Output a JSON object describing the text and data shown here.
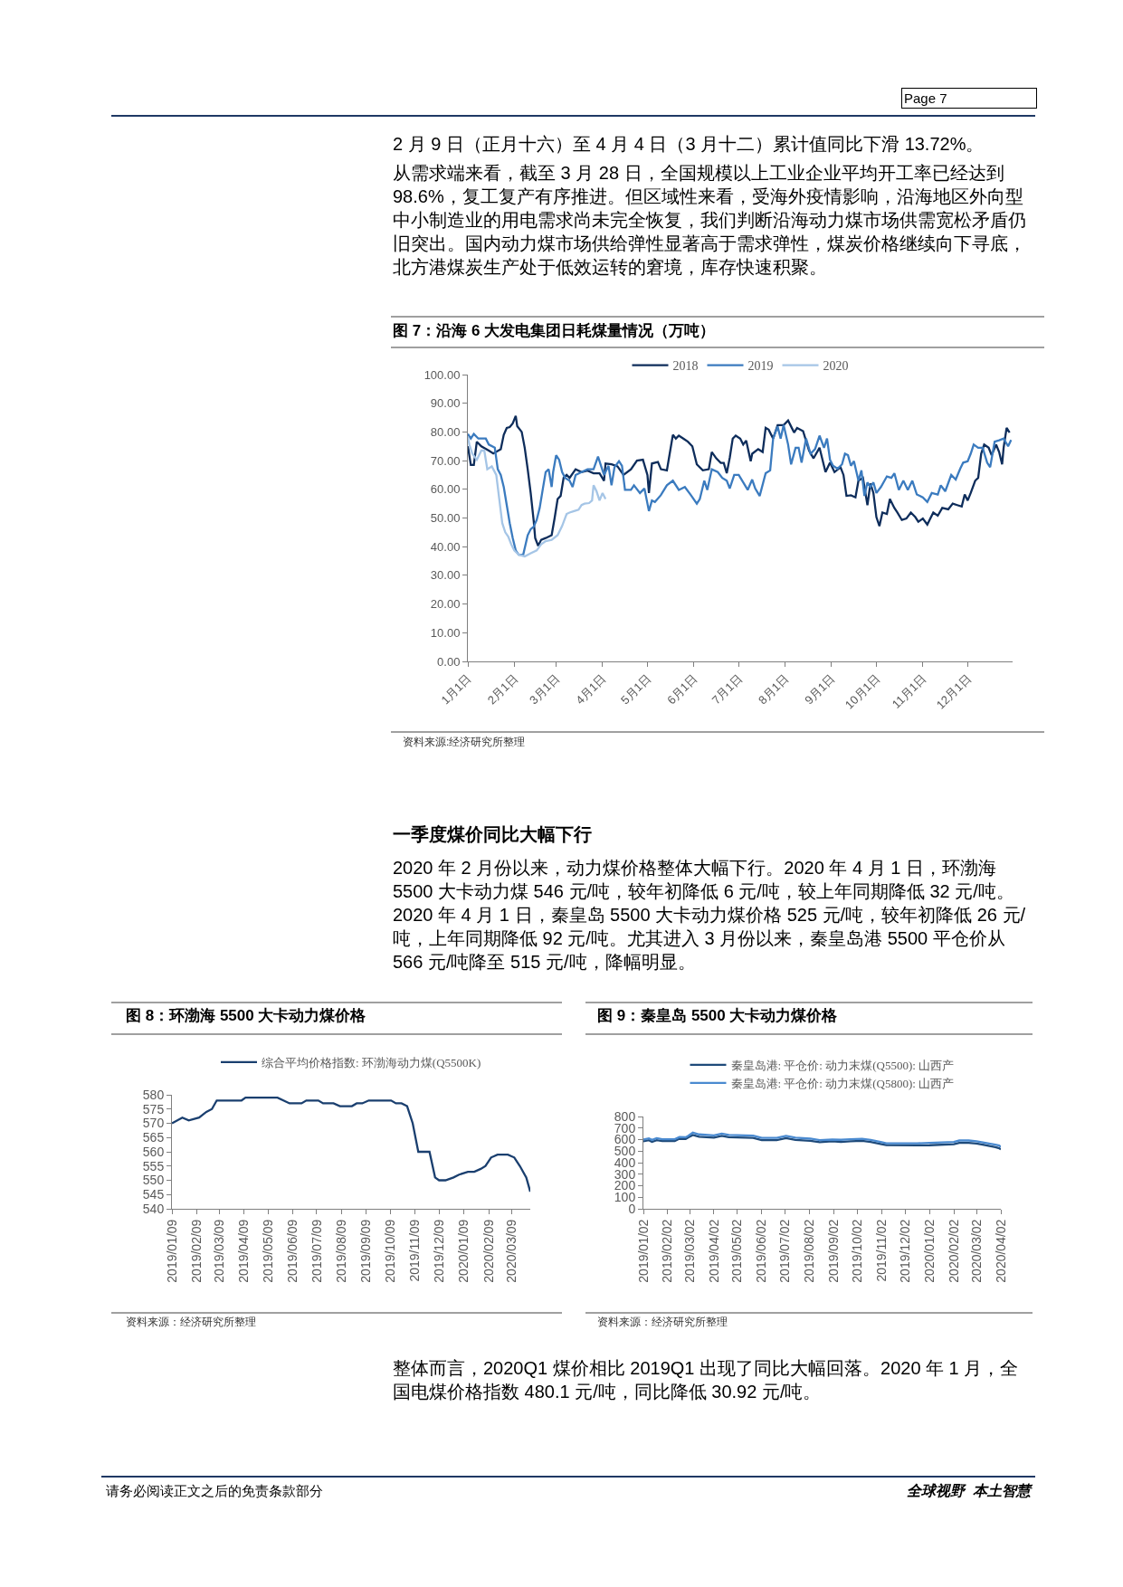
{
  "chart_data": [
    {
      "type": "line",
      "title": "图 7：沿海 6 大发电集团日耗煤量情况（万吨）",
      "legend": "top",
      "grid": false,
      "xlim": [
        "--01-01",
        "--12-31"
      ],
      "xticks": [
        {
          "value": "--01-01",
          "label": "1月1日"
        },
        {
          "value": "--02-01",
          "label": "2月1日"
        },
        {
          "value": "--03-01",
          "label": "3月1日"
        },
        {
          "value": "--04-01",
          "label": "4月1日"
        },
        {
          "value": "--05-01",
          "label": "5月1日"
        },
        {
          "value": "--06-01",
          "label": "6月1日"
        },
        {
          "value": "--07-01",
          "label": "7月1日"
        },
        {
          "value": "--08-01",
          "label": "8月1日"
        },
        {
          "value": "--09-01",
          "label": "9月1日"
        },
        {
          "value": "--10-01",
          "label": "10月1日"
        },
        {
          "value": "--11-01",
          "label": "11月1日"
        },
        {
          "value": "--12-01",
          "label": "12月1日"
        }
      ],
      "ylim": [
        0,
        100
      ],
      "yticks": [
        {
          "value": 0,
          "label": "0.00"
        },
        {
          "value": 10,
          "label": "10.00"
        },
        {
          "value": 20,
          "label": "20.00"
        },
        {
          "value": 30,
          "label": "30.00"
        },
        {
          "value": 40,
          "label": "40.00"
        },
        {
          "value": 50,
          "label": "50.00"
        },
        {
          "value": 60,
          "label": "60.00"
        },
        {
          "value": 70,
          "label": "70.00"
        },
        {
          "value": 80,
          "label": "80.00"
        },
        {
          "value": 90,
          "label": "90.00"
        },
        {
          "value": 100,
          "label": "100.00"
        }
      ],
      "series": [
        {
          "name": "2018",
          "color": "#0e2d5b",
          "x": [
            "--01-01",
            "--01-03",
            "--01-05",
            "--01-07",
            "--01-10",
            "--01-15",
            "--01-18",
            "--01-23",
            "--01-25",
            "--01-27",
            "--01-29",
            "--01-31",
            "--02-02",
            "--02-03",
            "--02-06",
            "--02-08",
            "--02-10",
            "--02-12",
            "--02-14",
            "--02-15",
            "--02-17",
            "--02-19",
            "--02-22",
            "--02-26",
            "--02-28",
            "--03-02",
            "--03-04",
            "--03-06",
            "--03-08",
            "--03-10",
            "--03-14",
            "--03-18",
            "--03-22",
            "--03-26",
            "--03-30",
            "--04-02",
            "--04-03",
            "--04-07",
            "--04-11",
            "--04-15",
            "--04-20",
            "--04-24",
            "--04-28",
            "--05-01",
            "--05-02",
            "--05-04",
            "--05-08",
            "--05-10",
            "--05-14",
            "--05-18",
            "--05-20",
            "--05-22",
            "--05-25",
            "--05-28",
            "--05-31",
            "--06-03",
            "--06-07",
            "--06-11",
            "--06-13",
            "--06-16",
            "--06-19",
            "--06-21",
            "--06-23",
            "--06-25",
            "--06-27",
            "--06-29",
            "--07-02",
            "--07-04",
            "--07-06",
            "--07-09",
            "--07-10",
            "--07-14",
            "--07-17",
            "--07-19",
            "--07-21",
            "--07-24",
            "--07-27",
            "--07-31",
            "--08-03",
            "--08-05",
            "--08-07",
            "--08-09",
            "--08-13",
            "--08-17",
            "--08-20",
            "--08-24",
            "--08-28",
            "--08-31",
            "--09-03",
            "--09-07",
            "--09-09",
            "--09-11",
            "--09-14",
            "--09-17",
            "--09-19",
            "--09-22",
            "--09-25",
            "--09-27",
            "--09-29",
            "--10-01",
            "--10-03",
            "--10-05",
            "--10-08",
            "--10-10",
            "--10-13",
            "--10-15",
            "--10-18",
            "--10-21",
            "--10-24",
            "--10-27",
            "--10-29",
            "--11-01",
            "--11-04",
            "--11-08",
            "--11-11",
            "--11-14",
            "--11-18",
            "--11-21",
            "--11-24",
            "--11-27",
            "--11-29",
            "--12-01",
            "--12-03",
            "--12-06",
            "--12-08",
            "--12-10",
            "--12-12",
            "--12-15",
            "--12-17",
            "--12-20",
            "--12-22",
            "--12-24",
            "--12-25",
            "--12-27",
            "--12-29"
          ],
          "values": [
            75,
            68.5,
            68.5,
            76.6,
            75,
            73.5,
            72.5,
            74,
            79,
            81.4,
            81.7,
            83,
            85.6,
            82,
            80,
            74.5,
            67,
            58.7,
            49,
            43,
            40.3,
            42.4,
            43,
            44,
            50,
            56.6,
            57.7,
            64,
            65,
            64,
            67,
            66,
            66.5,
            65.6,
            65.6,
            63,
            69,
            68.7,
            68,
            65,
            67,
            70,
            70.3,
            65,
            58.7,
            69,
            69.5,
            67,
            66.6,
            79,
            77.7,
            78.7,
            77.7,
            76.6,
            75,
            68.7,
            66.6,
            67,
            73,
            70.8,
            69.2,
            69.2,
            65.6,
            71,
            77.7,
            78.7,
            77.7,
            75.6,
            77,
            69.8,
            72.4,
            74,
            73,
            81.4,
            80.8,
            77.7,
            82.4,
            82.4,
            84,
            81.9,
            79.8,
            81.4,
            80.3,
            73.5,
            70.8,
            74.5,
            66,
            69.3,
            66,
            67.7,
            65,
            57.7,
            57.9,
            57.2,
            63,
            64,
            54.5,
            62,
            58.7,
            50.3,
            47.2,
            51.9,
            51.4,
            56.6,
            53.5,
            51.9,
            49.3,
            49.8,
            51.9,
            50.3,
            48.7,
            49.8,
            47.7,
            51.9,
            50.8,
            53.5,
            53,
            55,
            54.5,
            54,
            58.2,
            56.1,
            58.7,
            63,
            64,
            72.4,
            75.6,
            74.5,
            71.9,
            75.6,
            73,
            68.7,
            74.5,
            81.4,
            79.8
          ]
        },
        {
          "name": "2019",
          "color": "#3b7bbf",
          "x": [
            "--01-01",
            "--01-03",
            "--01-05",
            "--01-08",
            "--01-13",
            "--01-15",
            "--01-19",
            "--01-21",
            "--01-23",
            "--01-25",
            "--01-27",
            "--01-29",
            "--01-31",
            "--02-02",
            "--02-04",
            "--02-07",
            "--02-10",
            "--02-12",
            "--02-14",
            "--02-16",
            "--02-18",
            "--02-20",
            "--02-22",
            "--02-24",
            "--02-26",
            "--02-27",
            "--03-01",
            "--03-03",
            "--03-05",
            "--03-07",
            "--03-10",
            "--03-12",
            "--03-14",
            "--03-18",
            "--03-22",
            "--03-26",
            "--03-29",
            "--03-31",
            "--04-02",
            "--04-05",
            "--04-07",
            "--04-09",
            "--04-12",
            "--04-14",
            "--04-16",
            "--04-20",
            "--04-22",
            "--04-26",
            "--04-29",
            "--05-02",
            "--05-04",
            "--05-06",
            "--05-10",
            "--05-14",
            "--05-18",
            "--05-22",
            "--05-26",
            "--05-30",
            "--06-03",
            "--06-05",
            "--06-08",
            "--06-10",
            "--06-13",
            "--06-17",
            "--06-20",
            "--06-23",
            "--06-25",
            "--06-28",
            "--07-01",
            "--07-04",
            "--07-07",
            "--07-10",
            "--07-12",
            "--07-15",
            "--07-19",
            "--07-22",
            "--07-24",
            "--07-27",
            "--07-29",
            "--07-31",
            "--08-03",
            "--08-05",
            "--08-08",
            "--08-10",
            "--08-12",
            "--08-15",
            "--08-18",
            "--08-21",
            "--08-24",
            "--08-27",
            "--08-29",
            "--08-31",
            "--09-02",
            "--09-05",
            "--09-08",
            "--09-10",
            "--09-12",
            "--09-14",
            "--09-16",
            "--09-19",
            "--09-21",
            "--09-23",
            "--09-25",
            "--09-27",
            "--09-29",
            "--10-01",
            "--10-04",
            "--10-08",
            "--10-11",
            "--10-13",
            "--10-16",
            "--10-19",
            "--10-22",
            "--10-25",
            "--10-28",
            "--11-01",
            "--11-04",
            "--11-07",
            "--11-11",
            "--11-13",
            "--11-16",
            "--11-20",
            "--11-23",
            "--11-26",
            "--11-28",
            "--12-01",
            "--12-03",
            "--12-05",
            "--12-08",
            "--12-11",
            "--12-14",
            "--12-16",
            "--12-19",
            "--12-22",
            "--12-25",
            "--12-28",
            "--12-30"
          ],
          "values": [
            79.3,
            77.7,
            79.3,
            77.7,
            77.7,
            75.6,
            74.5,
            67,
            65,
            60.8,
            54.5,
            48.2,
            43,
            38.7,
            37.2,
            37.2,
            44,
            46.1,
            47,
            49.3,
            53.5,
            59.8,
            66,
            67,
            60.8,
            66,
            71.9,
            70.3,
            66,
            64,
            63,
            60.8,
            65,
            66,
            67,
            67,
            71.4,
            68.2,
            65,
            68.2,
            61.4,
            67.7,
            69.8,
            68.2,
            59.8,
            59.8,
            61.4,
            58.7,
            60.3,
            52.4,
            56.1,
            55.6,
            58,
            61.4,
            63,
            59.8,
            60.8,
            58,
            55,
            56.6,
            63,
            59.8,
            67,
            66,
            64,
            63,
            60.3,
            65,
            65,
            62.4,
            59.8,
            63.4,
            60.3,
            57.7,
            65.6,
            66.6,
            77.7,
            81.9,
            77.7,
            82.4,
            75.6,
            68.7,
            74.5,
            74.5,
            69.3,
            77.7,
            72.4,
            74,
            78.7,
            74.5,
            77.7,
            70.3,
            68.2,
            67.2,
            68.7,
            72.4,
            71.9,
            68.2,
            69.8,
            63,
            66.6,
            57.7,
            62.4,
            60.8,
            62.4,
            58.7,
            60.8,
            64.5,
            64,
            65.6,
            59.8,
            63,
            59.8,
            63,
            58.2,
            57.2,
            55.6,
            58.7,
            58.2,
            61.4,
            59.3,
            65,
            63.4,
            67.2,
            69.3,
            69.8,
            72.4,
            75.6,
            74.5,
            74.5,
            69.3,
            67.7,
            76.6,
            77.1,
            77.7,
            75,
            77.2
          ]
        },
        {
          "name": "2020",
          "color": "#a5c5e6",
          "x": [
            "--01-01",
            "--01-02",
            "--01-04",
            "--01-07",
            "--01-10",
            "--01-12",
            "--01-14",
            "--01-17",
            "--01-20",
            "--01-22",
            "--01-24",
            "--01-26",
            "--01-28",
            "--01-30",
            "--02-01",
            "--02-04",
            "--02-08",
            "--02-12",
            "--02-16",
            "--02-19",
            "--02-22",
            "--02-26",
            "--03-02",
            "--03-05",
            "--03-08",
            "--03-10",
            "--03-13",
            "--03-16",
            "--03-18",
            "--03-20",
            "--03-23",
            "--03-25",
            "--03-26",
            "--03-28",
            "--03-30",
            "--04-01",
            "--04-03"
          ],
          "values": [
            78.2,
            75.6,
            72.4,
            70.3,
            73.5,
            73.5,
            67,
            68,
            65,
            56.6,
            48.2,
            45,
            43.5,
            40.8,
            38.7,
            37.2,
            36.6,
            37.7,
            38.7,
            40.8,
            41.9,
            42.4,
            44,
            47.2,
            51.4,
            51.9,
            52.4,
            52.9,
            54.5,
            55,
            55.2,
            56.1,
            61.4,
            59.3,
            56.1,
            58.7,
            56.6
          ]
        }
      ],
      "annotations": [
        "Page 7",
        "2 月 9 日（正月十六）至 4 月 4 日（3 月十二）累计值同比下滑 13.72%。",
        "从需求端来看，截至 3 月 28 日，全国规模以上工业企业平均开工率已经达到 98.6%，复工复产有序推进。但区域性来看，受海外疫情影响，沿海地区外向型中小制造业的用电需求尚未完全恢复，我们判断沿海动力煤市场供需宽松矛盾仍旧突出。国内动力煤市场供给弹性显著高于需求弹性，煤炭价格继续向下寻底，北方港煤炭生产处于低效运转的窘境，库存快速积聚。",
        "资料来源:经济研究所整理"
      ]
    },
    {
      "type": "line",
      "title": "图 8：环渤海 5500 大卡动力煤价格",
      "legend": "top",
      "grid": false,
      "xlim": [
        "2019-01-09",
        "2020-04-01"
      ],
      "xticks": [
        {
          "value": "2019-01-09",
          "label": "2019/01/09"
        },
        {
          "value": "2019-02-09",
          "label": "2019/02/09"
        },
        {
          "value": "2019-03-09",
          "label": "2019/03/09"
        },
        {
          "value": "2019-04-09",
          "label": "2019/04/09"
        },
        {
          "value": "2019-05-09",
          "label": "2019/05/09"
        },
        {
          "value": "2019-06-09",
          "label": "2019/06/09"
        },
        {
          "value": "2019-07-09",
          "label": "2019/07/09"
        },
        {
          "value": "2019-08-09",
          "label": "2019/08/09"
        },
        {
          "value": "2019-09-09",
          "label": "2019/09/09"
        },
        {
          "value": "2019-10-09",
          "label": "2019/10/09"
        },
        {
          "value": "2019-11-09",
          "label": "2019/11/09"
        },
        {
          "value": "2019-12-09",
          "label": "2019/12/09"
        },
        {
          "value": "2020-01-09",
          "label": "2020/01/09"
        },
        {
          "value": "2020-02-09",
          "label": "2020/02/09"
        },
        {
          "value": "2020-03-09",
          "label": "2020/03/09"
        }
      ],
      "ylim": [
        540,
        580
      ],
      "yticks": [
        540,
        545,
        550,
        555,
        560,
        565,
        570,
        575,
        580
      ],
      "series": [
        {
          "name": "综合平均价格指数: 环渤海动力煤(Q5500K)",
          "color": "#1a3f6f",
          "x": [
            "2019-01-09",
            "2019-01-22",
            "2019-01-30",
            "2019-02-12",
            "2019-02-21",
            "2019-02-28",
            "2019-03-06",
            "2019-04-06",
            "2019-04-11",
            "2019-05-21",
            "2019-06-05",
            "2019-06-20",
            "2019-06-26",
            "2019-07-11",
            "2019-07-17",
            "2019-07-30",
            "2019-08-07",
            "2019-08-22",
            "2019-08-28",
            "2019-09-04",
            "2019-09-12",
            "2019-10-10",
            "2019-10-16",
            "2019-10-23",
            "2019-10-30",
            "2019-11-06",
            "2019-11-13",
            "2019-11-27",
            "2019-12-04",
            "2019-12-09",
            "2019-12-17",
            "2019-12-27",
            "2020-01-03",
            "2020-01-14",
            "2020-01-22",
            "2020-01-30",
            "2020-02-05",
            "2020-02-12",
            "2020-02-20",
            "2020-03-04",
            "2020-03-12",
            "2020-03-19",
            "2020-03-27",
            "2020-04-01"
          ],
          "values": [
            570,
            572,
            571,
            572,
            574,
            575,
            578,
            578,
            579,
            579,
            577,
            577,
            578,
            578,
            577,
            577,
            576,
            576,
            577,
            577,
            578,
            578,
            577,
            577,
            576,
            570,
            560,
            560,
            551,
            550,
            550,
            551,
            552,
            553,
            553,
            554,
            555,
            558,
            559,
            559,
            558,
            555,
            551,
            546
          ]
        }
      ],
      "annotations": [
        "一季度煤价同比大幅下行",
        "2020 年 2 月份以来，动力煤价格整体大幅下行。2020 年 4 月 1 日，环渤海 5500 大卡动力煤 546 元/吨，较年初降低 6 元/吨，较上年同期降低 32 元/吨。2020 年 4 月 1 日，秦皇岛 5500 大卡动力煤价格 525 元/吨，较年初降低 26 元/吨，上年同期降低 92 元/吨。尤其进入 3 月份以来，秦皇岛港 5500 平仓价从 566 元/吨降至 515 元/吨，降幅明显。",
        "资料来源：经济研究所整理"
      ]
    },
    {
      "type": "line",
      "title": "图 9：秦皇岛 5500 大卡动力煤价格",
      "legend": "top",
      "grid": false,
      "xlim": [
        "2019-01-02",
        "2020-04-02"
      ],
      "xticks": [
        {
          "value": "2019-01-02",
          "label": "2019/01/02"
        },
        {
          "value": "2019-02-02",
          "label": "2019/02/02"
        },
        {
          "value": "2019-03-02",
          "label": "2019/03/02"
        },
        {
          "value": "2019-04-02",
          "label": "2019/04/02"
        },
        {
          "value": "2019-05-02",
          "label": "2019/05/02"
        },
        {
          "value": "2019-06-02",
          "label": "2019/06/02"
        },
        {
          "value": "2019-07-02",
          "label": "2019/07/02"
        },
        {
          "value": "2019-08-02",
          "label": "2019/08/02"
        },
        {
          "value": "2019-09-02",
          "label": "2019/09/02"
        },
        {
          "value": "2019-10-02",
          "label": "2019/10/02"
        },
        {
          "value": "2019-11-02",
          "label": "2019/11/02"
        },
        {
          "value": "2019-12-02",
          "label": "2019/12/02"
        },
        {
          "value": "2020-01-02",
          "label": "2020/01/02"
        },
        {
          "value": "2020-02-02",
          "label": "2020/02/02"
        },
        {
          "value": "2020-03-02",
          "label": "2020/03/02"
        },
        {
          "value": "2020-04-02",
          "label": "2020/04/02"
        }
      ],
      "ylim": [
        0,
        800
      ],
      "yticks": [
        0,
        100,
        200,
        300,
        400,
        500,
        600,
        700,
        800
      ],
      "series": [
        {
          "name": "秦皇岛港: 平仓价: 动力末煤(Q5500): 山西产",
          "color": "#1e4a7a",
          "x": [
            "2019-01-02",
            "2019-01-09",
            "2019-01-13",
            "2019-01-19",
            "2019-01-26",
            "2019-02-11",
            "2019-02-17",
            "2019-02-25",
            "2019-02-28",
            "2019-03-06",
            "2019-03-14",
            "2019-04-02",
            "2019-04-12",
            "2019-04-21",
            "2019-05-22",
            "2019-06-02",
            "2019-06-21",
            "2019-07-03",
            "2019-07-15",
            "2019-08-03",
            "2019-08-15",
            "2019-08-31",
            "2019-09-11",
            "2019-09-23",
            "2019-10-08",
            "2019-10-19",
            "2019-11-02",
            "2019-11-08",
            "2019-12-17",
            "2020-01-02",
            "2020-02-02",
            "2020-02-09",
            "2020-02-21",
            "2020-03-02",
            "2020-03-10",
            "2020-03-26",
            "2020-03-31",
            "2020-04-02"
          ],
          "values": [
            585,
            595,
            580,
            595,
            588,
            588,
            608,
            605,
            617,
            640,
            625,
            617,
            632,
            620,
            615,
            595,
            595,
            612,
            597,
            590,
            578,
            585,
            580,
            585,
            590,
            580,
            560,
            552,
            550,
            551,
            560,
            572,
            572,
            566,
            555,
            535,
            525,
            515
          ]
        },
        {
          "name": "秦皇岛港: 平仓价: 动力末煤(Q5800): 山西产",
          "color": "#4a8ad0",
          "x": [
            "2019-01-02",
            "2019-01-09",
            "2019-01-13",
            "2019-01-19",
            "2019-01-26",
            "2019-02-11",
            "2019-02-17",
            "2019-02-25",
            "2019-02-28",
            "2019-03-06",
            "2019-03-14",
            "2019-04-02",
            "2019-04-12",
            "2019-04-21",
            "2019-05-22",
            "2019-06-02",
            "2019-06-21",
            "2019-07-03",
            "2019-07-15",
            "2019-08-03",
            "2019-08-15",
            "2019-08-31",
            "2019-09-11",
            "2019-09-23",
            "2019-10-08",
            "2019-10-19",
            "2019-11-02",
            "2019-11-08",
            "2019-12-17",
            "2020-01-02",
            "2020-02-02",
            "2020-02-09",
            "2020-02-21",
            "2020-03-02",
            "2020-03-10",
            "2020-03-26",
            "2020-03-31",
            "2020-04-02"
          ],
          "values": [
            600,
            610,
            597,
            612,
            603,
            603,
            622,
            620,
            632,
            660,
            645,
            637,
            652,
            640,
            635,
            615,
            615,
            632,
            617,
            608,
            595,
            600,
            598,
            603,
            607,
            597,
            577,
            568,
            567,
            572,
            580,
            592,
            592,
            586,
            575,
            555,
            548,
            535
          ]
        }
      ],
      "annotations": [
        "资料来源：经济研究所整理",
        "整体而言，2020Q1 煤价相比 2019Q1 出现了同比大幅回落。2020 年 1 月，全国电煤价格指数 480.1 元/吨，同比降低 30.92 元/吨。",
        "请务必阅读正文之后的免责条款部分",
        "全球视野  本土智慧"
      ]
    }
  ]
}
